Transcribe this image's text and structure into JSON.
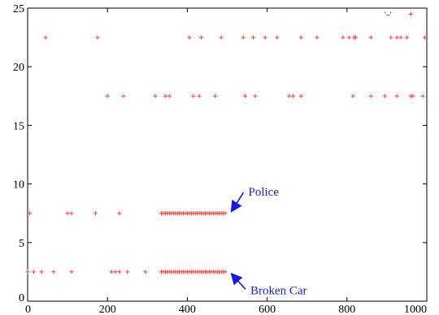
{
  "chart_data": {
    "type": "scatter",
    "xlim": [
      0,
      1000
    ],
    "ylim": [
      0,
      25
    ],
    "x_ticks": [
      0,
      200,
      400,
      600,
      800,
      1000
    ],
    "y_ticks": [
      0,
      5,
      10,
      15,
      20,
      25
    ],
    "grid": false,
    "marker": "+",
    "color": "#ff3b3b",
    "legend_text": "'–'",
    "series": [
      {
        "values_y": 22.5,
        "x": [
          45,
          175,
          405,
          435,
          485,
          540,
          565,
          595,
          625,
          685,
          725,
          790,
          805,
          818,
          822,
          860,
          910,
          925,
          935,
          950,
          995
        ]
      },
      {
        "values_y": 17.5,
        "x": [
          200,
          240,
          320,
          345,
          355,
          415,
          430,
          470,
          545,
          570,
          655,
          665,
          685,
          815,
          860,
          895,
          925,
          960,
          965,
          990
        ]
      },
      {
        "values_y": 7.5,
        "x": [
          5,
          100,
          110,
          170,
          230,
          335,
          340,
          345,
          350,
          355,
          360,
          365,
          370,
          375,
          380,
          385,
          390,
          395,
          400,
          405,
          410,
          415,
          420,
          425,
          430,
          435,
          440,
          445,
          450,
          455,
          460,
          465,
          470,
          475,
          480,
          485,
          490,
          495
        ]
      },
      {
        "values_y": 2.5,
        "x": [
          0,
          15,
          35,
          65,
          110,
          210,
          220,
          230,
          250,
          295,
          335,
          340,
          345,
          350,
          355,
          360,
          365,
          370,
          375,
          380,
          385,
          390,
          395,
          400,
          405,
          410,
          415,
          420,
          425,
          430,
          435,
          440,
          445,
          450,
          455,
          460,
          465,
          470,
          475,
          480,
          485,
          490,
          495
        ]
      },
      {
        "values_y": 24.5,
        "x": [
          960
        ]
      }
    ],
    "annotations": [
      {
        "text": "Police",
        "target_x": 500,
        "target_y": 7.5,
        "text_x": 555,
        "text_y": 9.0
      },
      {
        "text": "Broken Car",
        "target_x": 500,
        "target_y": 2.5,
        "text_x": 560,
        "text_y": 0.6
      }
    ]
  }
}
